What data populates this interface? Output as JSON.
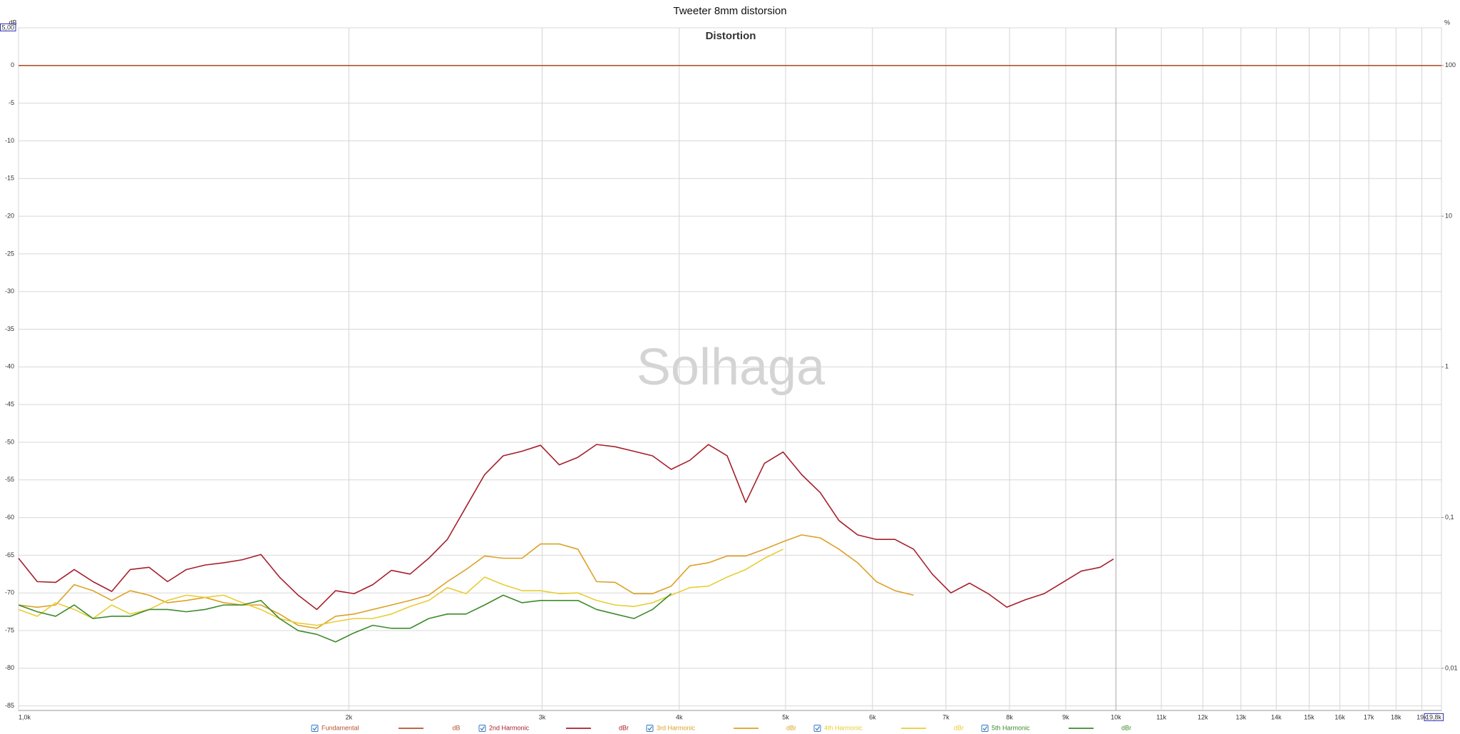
{
  "chart_data": {
    "type": "line",
    "title": "Tweeter 8mm distorsion",
    "subtitle": "Distortion",
    "watermark": "Solhaga",
    "y_unit": "dB",
    "y2_unit": "%",
    "xlog": true,
    "y2log": true,
    "grid": true,
    "xlim": [
      1000,
      19800
    ],
    "ylim": [
      5,
      -85.6
    ],
    "y2lim": [
      177.8,
      0.00525
    ],
    "xticks": [
      {
        "value": 1000,
        "label": "1,0k"
      },
      {
        "value": 2000,
        "label": "2k"
      },
      {
        "value": 3000,
        "label": "3k"
      },
      {
        "value": 4000,
        "label": "4k"
      },
      {
        "value": 5000,
        "label": "5k"
      },
      {
        "value": 6000,
        "label": "6k"
      },
      {
        "value": 7000,
        "label": "7k"
      },
      {
        "value": 8000,
        "label": "8k"
      },
      {
        "value": 9000,
        "label": "9k"
      },
      {
        "value": 10000,
        "label": "10k"
      },
      {
        "value": 11000,
        "label": "11k"
      },
      {
        "value": 12000,
        "label": "12k"
      },
      {
        "value": 13000,
        "label": "13k"
      },
      {
        "value": 14000,
        "label": "14k"
      },
      {
        "value": 15000,
        "label": "15k"
      },
      {
        "value": 16000,
        "label": "16k"
      },
      {
        "value": 17000,
        "label": "17k"
      },
      {
        "value": 18000,
        "label": "18k"
      },
      {
        "value": 19000,
        "label": "19k"
      },
      {
        "value": 19800,
        "label": "19,8k"
      }
    ],
    "yticks": [
      {
        "value": 5,
        "label": "5,00"
      },
      0,
      -5,
      -10,
      -15,
      -20,
      -25,
      -30,
      -35,
      -40,
      -45,
      -50,
      -55,
      -60,
      -65,
      -70,
      -75,
      -80,
      -85
    ],
    "y2ticks": [
      100,
      10,
      1,
      {
        "value": 0.1,
        "label": "0,1"
      },
      {
        "value": 0.01,
        "label": "0,01"
      }
    ],
    "x": [
      1000,
      1040,
      1081,
      1124,
      1169,
      1216,
      1264,
      1315,
      1367,
      1422,
      1479,
      1538,
      1599,
      1663,
      1729,
      1798,
      1870,
      1945,
      2022,
      2103,
      2187,
      2274,
      2365,
      2459,
      2557,
      2659,
      2765,
      2876,
      2990,
      3110,
      3234,
      3363,
      3497,
      3637,
      3782,
      3933,
      4090,
      4253,
      4423,
      4599,
      4783,
      4974,
      5172,
      5378,
      5593,
      5816,
      6048,
      6290,
      6541,
      6802,
      7073,
      7355,
      7649,
      7954,
      8271,
      8601,
      8945,
      9301,
      9673,
      9950,
      19800
    ],
    "series": [
      {
        "name": "Fundamental",
        "unit": "dB",
        "color": "#b4532f",
        "values": [
          0,
          0,
          0,
          0,
          0,
          0,
          0,
          0,
          0,
          0,
          0,
          0,
          0,
          0,
          0,
          0,
          0,
          0,
          0,
          0,
          0,
          0,
          0,
          0,
          0,
          0,
          0,
          0,
          0,
          0,
          0,
          0,
          0,
          0,
          0,
          0,
          0,
          0,
          0,
          0,
          0,
          0,
          0,
          0,
          0,
          0,
          0,
          0,
          0,
          0,
          0,
          0,
          0,
          0,
          0,
          0,
          0,
          0,
          0,
          0,
          0
        ]
      },
      {
        "name": "2nd Harmonic",
        "unit": "dBr",
        "color": "#a61f2a",
        "values": [
          -65.4,
          -68.5,
          -68.6,
          -66.9,
          -68.5,
          -69.8,
          -66.9,
          -66.6,
          -68.5,
          -66.9,
          -66.3,
          -66.0,
          -65.6,
          -64.9,
          -67.9,
          -70.3,
          -72.2,
          -69.7,
          -70.1,
          -68.9,
          -67.0,
          -67.5,
          -65.4,
          -62.9,
          -58.6,
          -54.3,
          -51.8,
          -51.2,
          -50.4,
          -53.0,
          -52.0,
          -50.3,
          -50.6,
          -51.2,
          -51.8,
          -53.6,
          -52.4,
          -50.3,
          -51.8,
          -58.0,
          -52.8,
          -51.3,
          -54.3,
          -56.7,
          -60.4,
          -62.3,
          -62.9,
          -62.9,
          -64.2,
          -67.5,
          -70.0,
          -68.7,
          -70.1,
          -71.9,
          -70.9,
          -70.1,
          -68.6,
          -67.1,
          -66.6,
          -65.5,
          null
        ]
      },
      {
        "name": "3rd Harmonic",
        "unit": "dBr",
        "color": "#dda126",
        "values": [
          -71.6,
          -71.9,
          -71.6,
          -68.9,
          -69.7,
          -71.0,
          -69.7,
          -70.3,
          -71.3,
          -71.0,
          -70.6,
          -71.3,
          -71.6,
          -71.6,
          -72.8,
          -74.3,
          -74.7,
          -73.1,
          -72.8,
          -72.2,
          -71.6,
          -71.0,
          -70.3,
          -68.5,
          -66.9,
          -65.1,
          -65.4,
          -65.4,
          -63.5,
          -63.5,
          -64.2,
          -68.5,
          -68.6,
          -70.1,
          -70.1,
          -69.1,
          -66.4,
          -66.0,
          -65.1,
          -65.1,
          -64.2,
          -63.2,
          -62.3,
          -62.7,
          -64.2,
          -66.0,
          -68.5,
          -69.7,
          -70.3,
          null,
          null,
          null,
          null,
          null,
          null,
          null,
          null,
          null,
          null,
          null,
          null
        ]
      },
      {
        "name": "4th Harmonic",
        "unit": "dBr",
        "color": "#e8cd32",
        "values": [
          -72.2,
          -73.1,
          -71.3,
          -72.2,
          -73.4,
          -71.6,
          -72.8,
          -72.2,
          -71.0,
          -70.3,
          -70.6,
          -70.3,
          -71.3,
          -72.2,
          -73.4,
          -74.0,
          -74.3,
          -73.8,
          -73.4,
          -73.4,
          -72.8,
          -71.8,
          -71.0,
          -69.3,
          -70.1,
          -67.9,
          -68.9,
          -69.7,
          -69.7,
          -70.1,
          -70.0,
          -71.0,
          -71.6,
          -71.8,
          -71.3,
          -70.3,
          -69.3,
          -69.1,
          -67.9,
          -66.9,
          -65.4,
          -64.2,
          null,
          null,
          null,
          null,
          null,
          null,
          null,
          null,
          null,
          null,
          null,
          null,
          null,
          null,
          null,
          null,
          null,
          null,
          null
        ]
      },
      {
        "name": "5th Harmonic",
        "unit": "dBr",
        "color": "#3d8a2c",
        "values": [
          -71.6,
          -72.5,
          -73.1,
          -71.6,
          -73.4,
          -73.1,
          -73.1,
          -72.2,
          -72.2,
          -72.5,
          -72.2,
          -71.6,
          -71.6,
          -71.0,
          -73.4,
          -75.0,
          -75.5,
          -76.5,
          -75.3,
          -74.3,
          -74.7,
          -74.7,
          -73.4,
          -72.8,
          -72.8,
          -71.6,
          -70.3,
          -71.3,
          -71.0,
          -71.0,
          -71.0,
          -72.2,
          -72.8,
          -73.4,
          -72.2,
          -70.1,
          null,
          null,
          null,
          null,
          null,
          null,
          null,
          null,
          null,
          null,
          null,
          null,
          null,
          null,
          null,
          null,
          null,
          null,
          null,
          null,
          null,
          null,
          null,
          null,
          null
        ]
      }
    ]
  }
}
